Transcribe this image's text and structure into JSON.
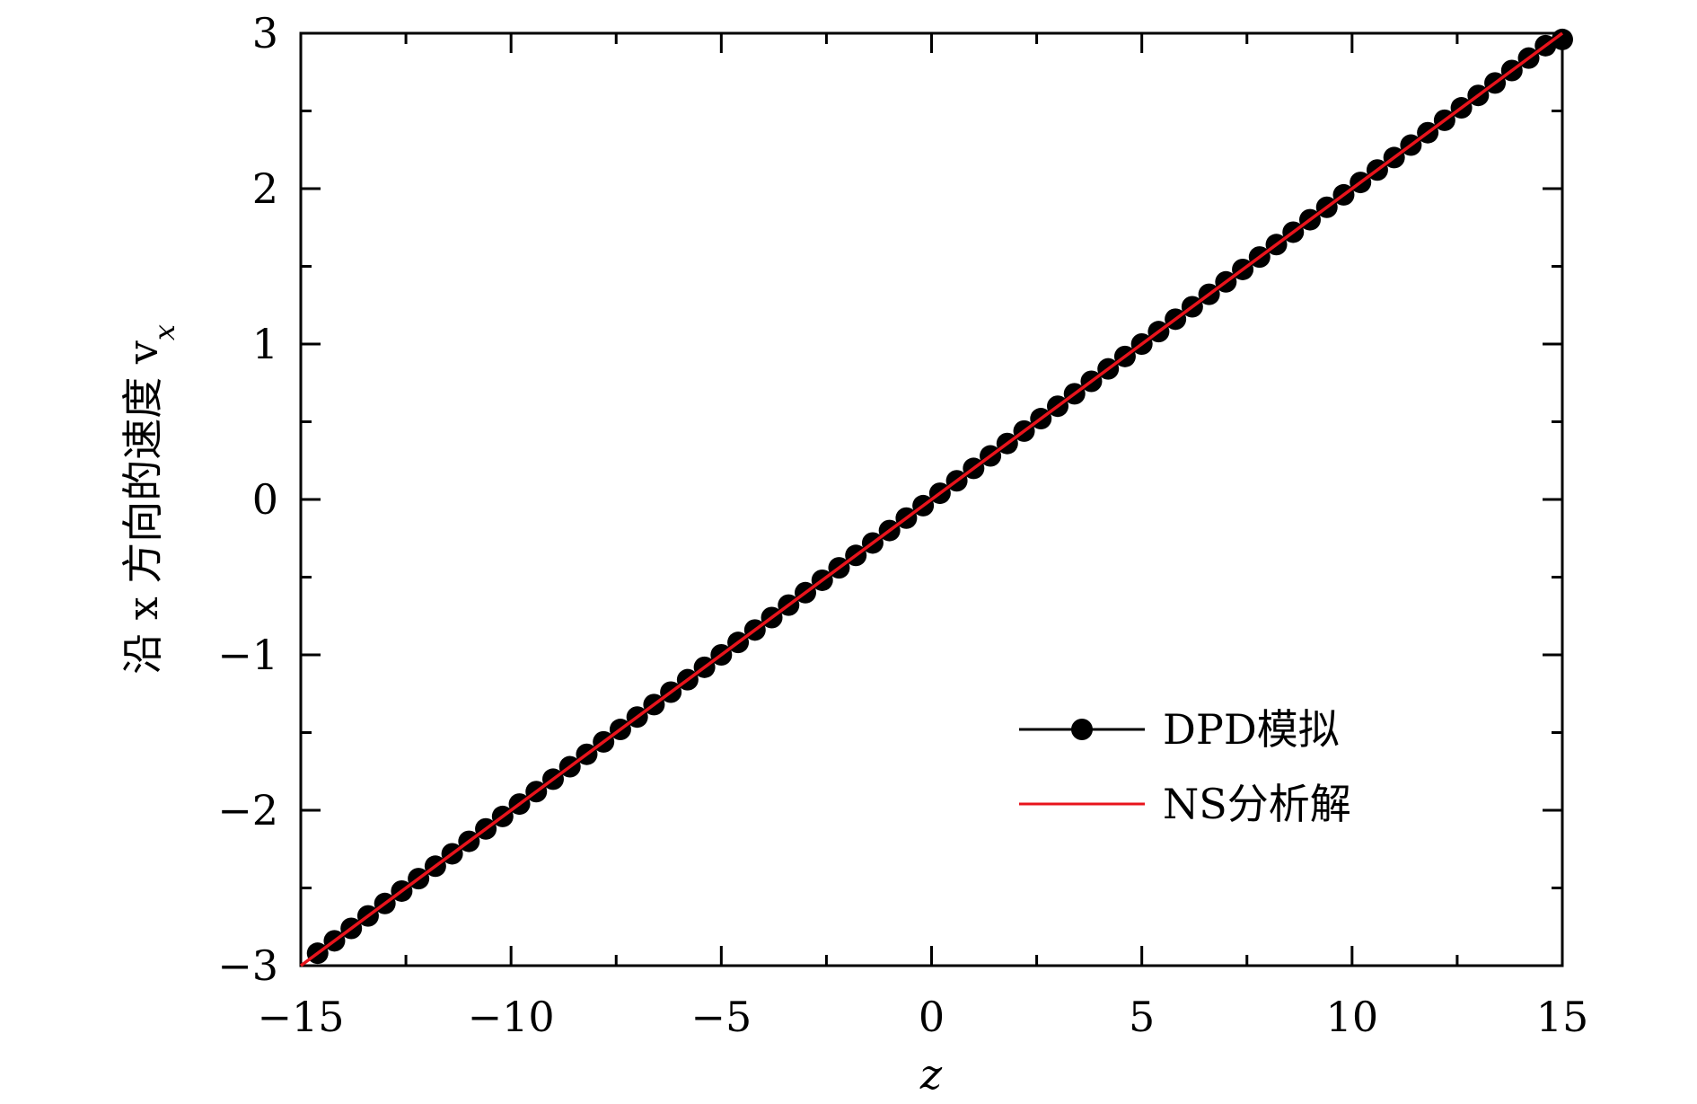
{
  "chart_data": {
    "type": "line",
    "xlabel": "z",
    "ylabel": "沿 x 方向的速度 v",
    "ylabel_subscript": "x",
    "xlim": [
      -15,
      15
    ],
    "ylim": [
      -3,
      3
    ],
    "x_ticks": [
      -15,
      -10,
      -5,
      0,
      5,
      10,
      15
    ],
    "x_tick_labels": [
      "−15",
      "−10",
      "−5",
      "0",
      "5",
      "10",
      "15"
    ],
    "y_ticks": [
      -3,
      -2,
      -1,
      0,
      1,
      2,
      3
    ],
    "y_tick_labels": [
      "−3",
      "−2",
      "−1",
      "0",
      "1",
      "2",
      "3"
    ],
    "x_minor_step": 2.5,
    "y_minor_step": 0.5,
    "grid": false,
    "legend_position": "lower-right",
    "series": [
      {
        "name": "DPD模拟",
        "style": "line-with-markers",
        "color": "#000000",
        "x": [
          -14.6,
          -14.2,
          -13.8,
          -13.4,
          -13.0,
          -12.6,
          -12.2,
          -11.8,
          -11.4,
          -11.0,
          -10.6,
          -10.2,
          -9.8,
          -9.4,
          -9.0,
          -8.6,
          -8.2,
          -7.8,
          -7.4,
          -7.0,
          -6.6,
          -6.2,
          -5.8,
          -5.4,
          -5.0,
          -4.6,
          -4.2,
          -3.8,
          -3.4,
          -3.0,
          -2.6,
          -2.2,
          -1.8,
          -1.4,
          -1.0,
          -0.6,
          -0.2,
          0.2,
          0.6,
          1.0,
          1.4,
          1.8,
          2.2,
          2.6,
          3.0,
          3.4,
          3.8,
          4.2,
          4.6,
          5.0,
          5.4,
          5.8,
          6.2,
          6.6,
          7.0,
          7.4,
          7.8,
          8.2,
          8.6,
          9.0,
          9.4,
          9.8,
          10.2,
          10.6,
          11.0,
          11.4,
          11.8,
          12.2,
          12.6,
          13.0,
          13.4,
          13.8,
          14.2,
          14.6,
          15.0
        ],
        "y": [
          -2.92,
          -2.84,
          -2.76,
          -2.68,
          -2.6,
          -2.52,
          -2.44,
          -2.36,
          -2.28,
          -2.2,
          -2.12,
          -2.04,
          -1.96,
          -1.88,
          -1.8,
          -1.72,
          -1.64,
          -1.56,
          -1.48,
          -1.4,
          -1.32,
          -1.24,
          -1.16,
          -1.08,
          -1.0,
          -0.92,
          -0.84,
          -0.76,
          -0.68,
          -0.6,
          -0.52,
          -0.44,
          -0.36,
          -0.28,
          -0.2,
          -0.12,
          -0.04,
          0.04,
          0.12,
          0.2,
          0.28,
          0.36,
          0.44,
          0.52,
          0.6,
          0.68,
          0.76,
          0.84,
          0.92,
          1.0,
          1.08,
          1.16,
          1.24,
          1.32,
          1.4,
          1.48,
          1.56,
          1.64,
          1.72,
          1.8,
          1.88,
          1.96,
          2.04,
          2.12,
          2.2,
          2.28,
          2.36,
          2.44,
          2.52,
          2.6,
          2.68,
          2.76,
          2.84,
          2.92,
          2.96
        ]
      },
      {
        "name": "NS分析解",
        "style": "line",
        "color": "#e8141c",
        "x": [
          -15,
          15
        ],
        "y": [
          -3,
          3
        ]
      }
    ]
  }
}
